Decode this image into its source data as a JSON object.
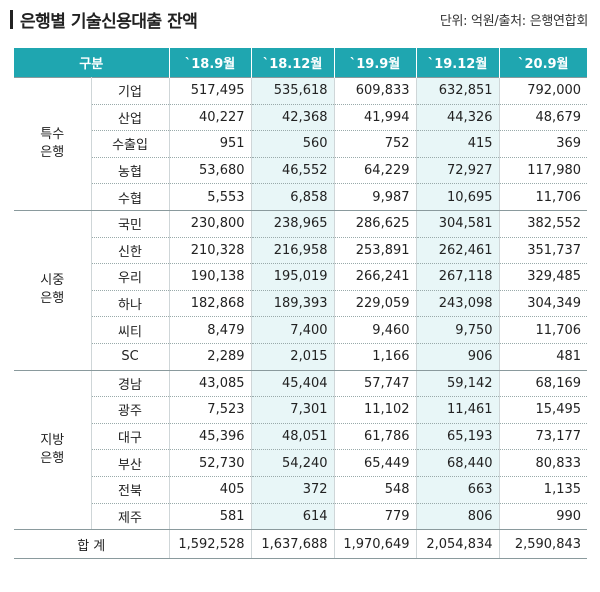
{
  "header": {
    "title": "은행별 기술신용대출 잔액",
    "source": "단위: 억원/출처: 은행연합회"
  },
  "table": {
    "col_header_group": "구분",
    "columns": [
      "`18.9월",
      "`18.12월",
      "`19.9월",
      "`19.12월",
      "`20.9월"
    ],
    "groups": [
      {
        "label": "특수\n은행",
        "rows": [
          {
            "name": "기업",
            "values": [
              "517,495",
              "535,618",
              "609,833",
              "632,851",
              "792,000"
            ]
          },
          {
            "name": "산업",
            "values": [
              "40,227",
              "42,368",
              "41,994",
              "44,326",
              "48,679"
            ]
          },
          {
            "name": "수출입",
            "values": [
              "951",
              "560",
              "752",
              "415",
              "369"
            ]
          },
          {
            "name": "농협",
            "values": [
              "53,680",
              "46,552",
              "64,229",
              "72,927",
              "117,980"
            ]
          },
          {
            "name": "수협",
            "values": [
              "5,553",
              "6,858",
              "9,987",
              "10,695",
              "11,706"
            ]
          }
        ]
      },
      {
        "label": "시중\n은행",
        "rows": [
          {
            "name": "국민",
            "values": [
              "230,800",
              "238,965",
              "286,625",
              "304,581",
              "382,552"
            ]
          },
          {
            "name": "신한",
            "values": [
              "210,328",
              "216,958",
              "253,891",
              "262,461",
              "351,737"
            ]
          },
          {
            "name": "우리",
            "values": [
              "190,138",
              "195,019",
              "266,241",
              "267,118",
              "329,485"
            ]
          },
          {
            "name": "하나",
            "values": [
              "182,868",
              "189,393",
              "229,059",
              "243,098",
              "304,349"
            ]
          },
          {
            "name": "씨티",
            "values": [
              "8,479",
              "7,400",
              "9,460",
              "9,750",
              "11,706"
            ]
          },
          {
            "name": "SC",
            "values": [
              "2,289",
              "2,015",
              "1,166",
              "906",
              "481"
            ]
          }
        ]
      },
      {
        "label": "지방\n은행",
        "rows": [
          {
            "name": "경남",
            "values": [
              "43,085",
              "45,404",
              "57,747",
              "59,142",
              "68,169"
            ]
          },
          {
            "name": "광주",
            "values": [
              "7,523",
              "7,301",
              "11,102",
              "11,461",
              "15,495"
            ]
          },
          {
            "name": "대구",
            "values": [
              "45,396",
              "48,051",
              "61,786",
              "65,193",
              "73,177"
            ]
          },
          {
            "name": "부산",
            "values": [
              "52,730",
              "54,240",
              "65,449",
              "68,440",
              "80,833"
            ]
          },
          {
            "name": "전북",
            "values": [
              "405",
              "372",
              "548",
              "663",
              "1,135"
            ]
          },
          {
            "name": "제주",
            "values": [
              "581",
              "614",
              "779",
              "806",
              "990"
            ]
          }
        ]
      }
    ],
    "total": {
      "label": "합 계",
      "values": [
        "1,592,528",
        "1,637,688",
        "1,970,649",
        "2,054,834",
        "2,590,843"
      ]
    },
    "colors": {
      "header_bg": "#1fa6b0",
      "tint_bg": "#e8f6f7"
    }
  }
}
